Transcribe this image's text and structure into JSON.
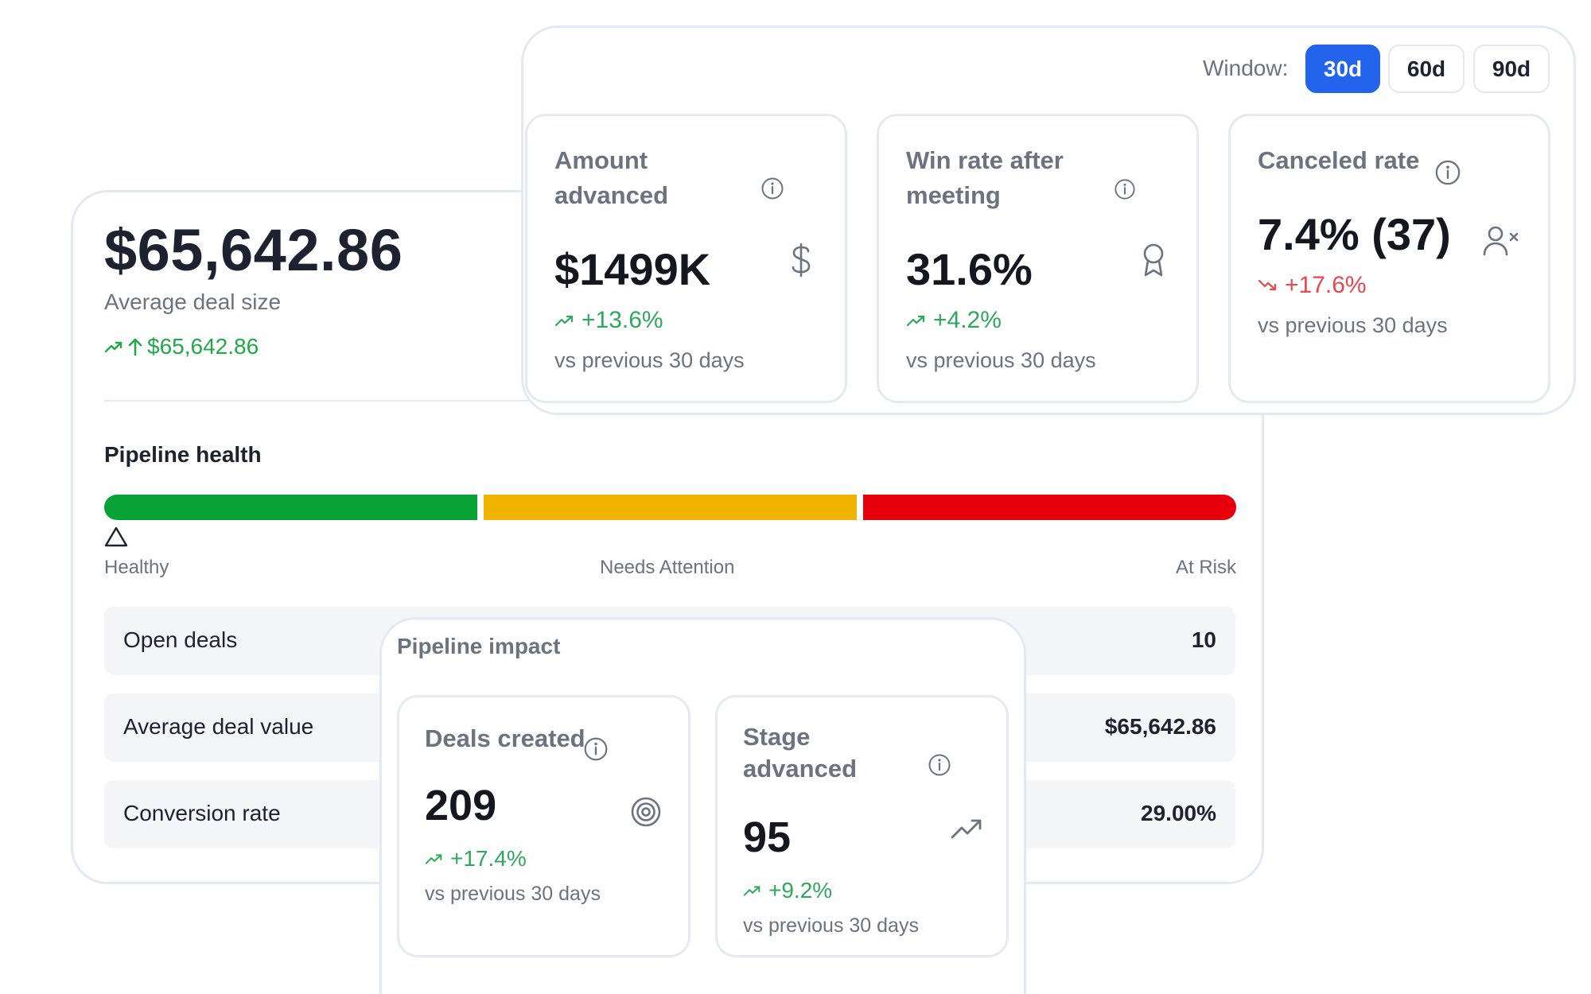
{
  "summary": {
    "average_deal_value": "$65,642.86",
    "average_deal_label": "Average deal size",
    "delta": "$65,642.86"
  },
  "pipeline_health": {
    "title": "Pipeline health",
    "labels": {
      "healthy": "Healthy",
      "needs_attention": "Needs Attention",
      "at_risk": "At Risk"
    },
    "colors": {
      "healthy": "#07a336",
      "needs_attention": "#f0b300",
      "at_risk": "#e5000c"
    }
  },
  "metrics": {
    "open_deals": {
      "label": "Open deals",
      "value": "10"
    },
    "average_deal_value": {
      "label": "Average deal value",
      "value": "$65,642.86"
    },
    "conversion_rate": {
      "label": "Conversion rate",
      "value": "29.00%"
    }
  },
  "window": {
    "label": "Window:",
    "options": [
      "30d",
      "60d",
      "90d"
    ],
    "selected": "30d"
  },
  "kpis": {
    "amount_advanced": {
      "title_line1": "Amount",
      "title_line2": "advanced",
      "value": "$1499K",
      "delta": "+13.6%",
      "note": "vs previous 30 days",
      "icon": "dollar-icon"
    },
    "win_rate": {
      "title_line1": "Win rate after",
      "title_line2": "meeting",
      "value": "31.6%",
      "delta": "+4.2%",
      "note": "vs previous 30 days",
      "icon": "award-icon"
    },
    "canceled_rate": {
      "title": "Canceled rate",
      "value": "7.4% (37)",
      "delta": "+17.6%",
      "note": "vs previous 30 days",
      "icon": "user-x-icon"
    }
  },
  "pipeline_impact": {
    "title": "Pipeline impact",
    "deals_created": {
      "title": "Deals created",
      "value": "209",
      "delta": "+17.4%",
      "note": "vs previous 30 days",
      "icon": "target-icon"
    },
    "stage_advanced": {
      "title_line1": "Stage",
      "title_line2": "advanced",
      "value": "95",
      "delta": "+9.2%",
      "note": "vs previous 30 days",
      "icon": "trending-up-icon"
    }
  },
  "theme": {
    "accent": "#2463eb",
    "positive": "#2fa85c",
    "negative": "#e5484d",
    "muted": "#6b7280"
  }
}
